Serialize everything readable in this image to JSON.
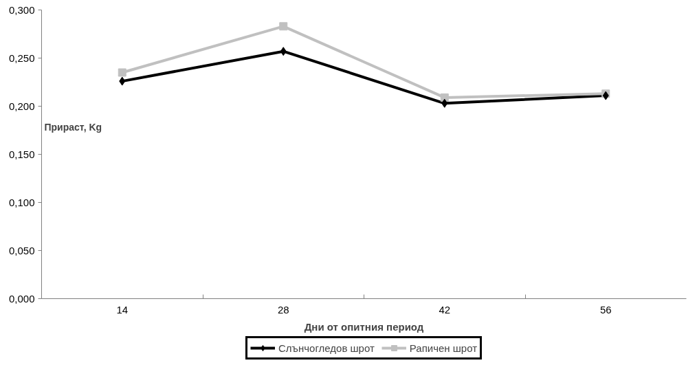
{
  "chart_data": {
    "type": "line",
    "xlabel": "Дни от опитния период",
    "ylabel": "Прираст, Kg",
    "categories": [
      "14",
      "28",
      "42",
      "56"
    ],
    "series": [
      {
        "name": "Слънчогледов шрот",
        "color": "#000000",
        "marker": "diamond",
        "values": [
          0.226,
          0.257,
          0.203,
          0.211
        ]
      },
      {
        "name": "Рапичен шрот",
        "color": "#c0c0c0",
        "marker": "square",
        "values": [
          0.235,
          0.283,
          0.209,
          0.213
        ]
      }
    ],
    "ylim": [
      0,
      0.3
    ],
    "yticks": [
      {
        "value": 0,
        "label": "0,000"
      },
      {
        "value": 0.05,
        "label": "0,050"
      },
      {
        "value": 0.1,
        "label": "0,100"
      },
      {
        "value": 0.15,
        "label": "0,150"
      },
      {
        "value": 0.2,
        "label": "0,200"
      },
      {
        "value": 0.25,
        "label": "0,250"
      },
      {
        "value": 0.3,
        "label": "0,300"
      }
    ],
    "grid": false,
    "legend": "bottom",
    "line_style": "solid"
  }
}
